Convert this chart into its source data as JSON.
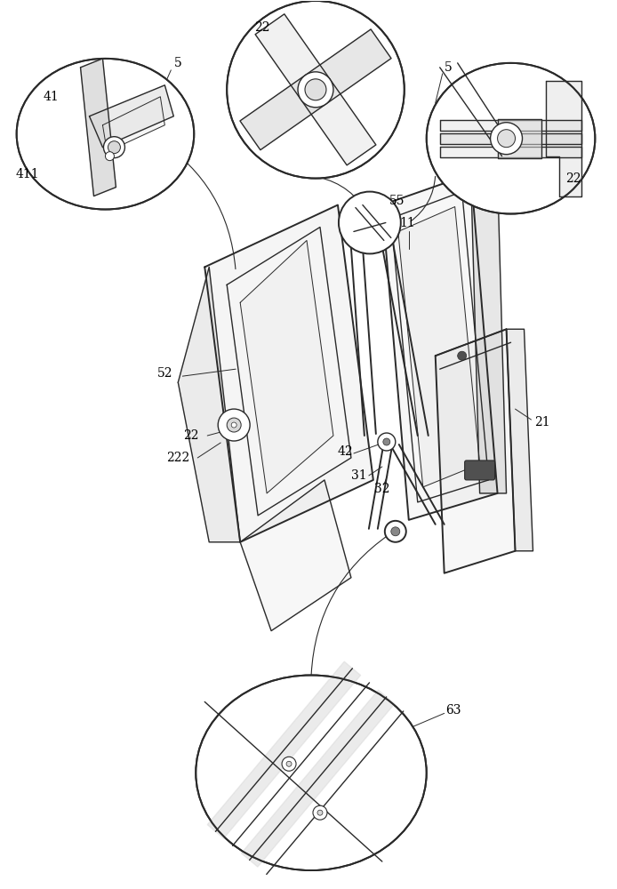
{
  "bg_color": "#ffffff",
  "lc": "#2a2a2a",
  "lg": "#d8d8d8",
  "mg": "#b0b0b0",
  "dg": "#505050",
  "figure_width": 6.94,
  "figure_height": 10.0,
  "dpi": 100
}
